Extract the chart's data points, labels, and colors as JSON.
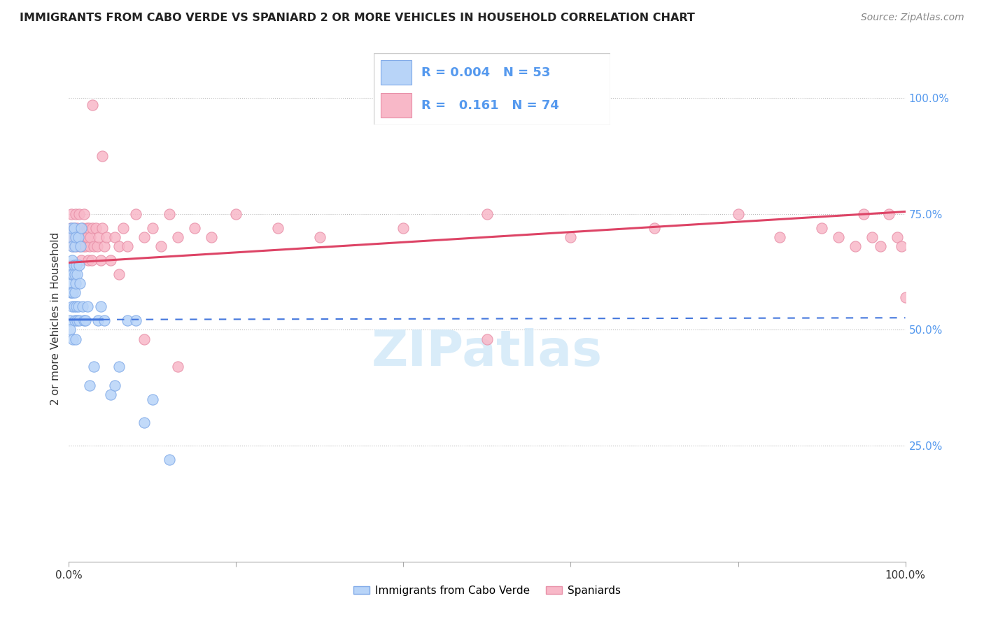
{
  "title": "IMMIGRANTS FROM CABO VERDE VS SPANIARD 2 OR MORE VEHICLES IN HOUSEHOLD CORRELATION CHART",
  "source": "Source: ZipAtlas.com",
  "ylabel": "2 or more Vehicles in Household",
  "y_axis_labels_right": [
    "100.0%",
    "75.0%",
    "50.0%",
    "25.0%"
  ],
  "y_axis_vals_right": [
    1.0,
    0.75,
    0.5,
    0.25
  ],
  "color_blue_fill": "#b8d4f8",
  "color_blue_edge": "#80aae8",
  "color_pink_fill": "#f8b8c8",
  "color_pink_edge": "#e890a8",
  "line_color_blue": "#4477dd",
  "line_color_pink": "#dd4466",
  "grid_color": "#cccccc",
  "right_label_color": "#5599ee",
  "watermark_color": "#d0e8f8",
  "xlim": [
    0.0,
    1.0
  ],
  "ylim": [
    0.0,
    1.05
  ],
  "cv_R": 0.004,
  "cv_N": 53,
  "sp_R": 0.161,
  "sp_N": 74,
  "cv_line_start_y": 0.522,
  "cv_line_end_y": 0.526,
  "sp_line_start_y": 0.645,
  "sp_line_end_y": 0.755,
  "cv_x": [
    0.001,
    0.001,
    0.001,
    0.002,
    0.002,
    0.002,
    0.003,
    0.003,
    0.003,
    0.004,
    0.004,
    0.004,
    0.005,
    0.005,
    0.005,
    0.006,
    0.006,
    0.006,
    0.007,
    0.007,
    0.007,
    0.007,
    0.008,
    0.008,
    0.008,
    0.009,
    0.009,
    0.01,
    0.01,
    0.011,
    0.011,
    0.012,
    0.012,
    0.013,
    0.014,
    0.015,
    0.016,
    0.018,
    0.02,
    0.022,
    0.025,
    0.03,
    0.035,
    0.038,
    0.042,
    0.05,
    0.055,
    0.06,
    0.07,
    0.08,
    0.09,
    0.1,
    0.12
  ],
  "cv_y": [
    0.52,
    0.6,
    0.5,
    0.7,
    0.64,
    0.58,
    0.72,
    0.62,
    0.58,
    0.65,
    0.55,
    0.68,
    0.62,
    0.58,
    0.48,
    0.72,
    0.64,
    0.55,
    0.68,
    0.62,
    0.58,
    0.52,
    0.7,
    0.6,
    0.48,
    0.64,
    0.55,
    0.62,
    0.52,
    0.7,
    0.55,
    0.64,
    0.52,
    0.6,
    0.68,
    0.72,
    0.55,
    0.52,
    0.52,
    0.55,
    0.38,
    0.42,
    0.52,
    0.55,
    0.52,
    0.36,
    0.38,
    0.42,
    0.52,
    0.52,
    0.3,
    0.35,
    0.22
  ],
  "sp_x": [
    0.001,
    0.002,
    0.003,
    0.004,
    0.005,
    0.006,
    0.007,
    0.008,
    0.009,
    0.01,
    0.011,
    0.012,
    0.013,
    0.014,
    0.015,
    0.016,
    0.017,
    0.018,
    0.019,
    0.02,
    0.021,
    0.022,
    0.023,
    0.024,
    0.025,
    0.026,
    0.027,
    0.028,
    0.03,
    0.032,
    0.034,
    0.036,
    0.038,
    0.04,
    0.042,
    0.045,
    0.05,
    0.055,
    0.06,
    0.065,
    0.07,
    0.08,
    0.09,
    0.1,
    0.11,
    0.12,
    0.13,
    0.15,
    0.17,
    0.2,
    0.25,
    0.3,
    0.4,
    0.5,
    0.6,
    0.7,
    0.8,
    0.85,
    0.9,
    0.92,
    0.94,
    0.95,
    0.96,
    0.97,
    0.98,
    0.99,
    0.995,
    1.0,
    0.028,
    0.04,
    0.06,
    0.09,
    0.13,
    0.5
  ],
  "sp_y": [
    0.7,
    0.72,
    0.75,
    0.7,
    0.68,
    0.72,
    0.7,
    0.75,
    0.68,
    0.72,
    0.7,
    0.75,
    0.68,
    0.7,
    0.65,
    0.72,
    0.68,
    0.75,
    0.7,
    0.68,
    0.72,
    0.7,
    0.65,
    0.72,
    0.68,
    0.7,
    0.65,
    0.72,
    0.68,
    0.72,
    0.68,
    0.7,
    0.65,
    0.72,
    0.68,
    0.7,
    0.65,
    0.7,
    0.68,
    0.72,
    0.68,
    0.75,
    0.7,
    0.72,
    0.68,
    0.75,
    0.7,
    0.72,
    0.7,
    0.75,
    0.72,
    0.7,
    0.72,
    0.75,
    0.7,
    0.72,
    0.75,
    0.7,
    0.72,
    0.7,
    0.68,
    0.75,
    0.7,
    0.68,
    0.75,
    0.7,
    0.68,
    0.57,
    0.985,
    0.875,
    0.62,
    0.48,
    0.42,
    0.48
  ]
}
